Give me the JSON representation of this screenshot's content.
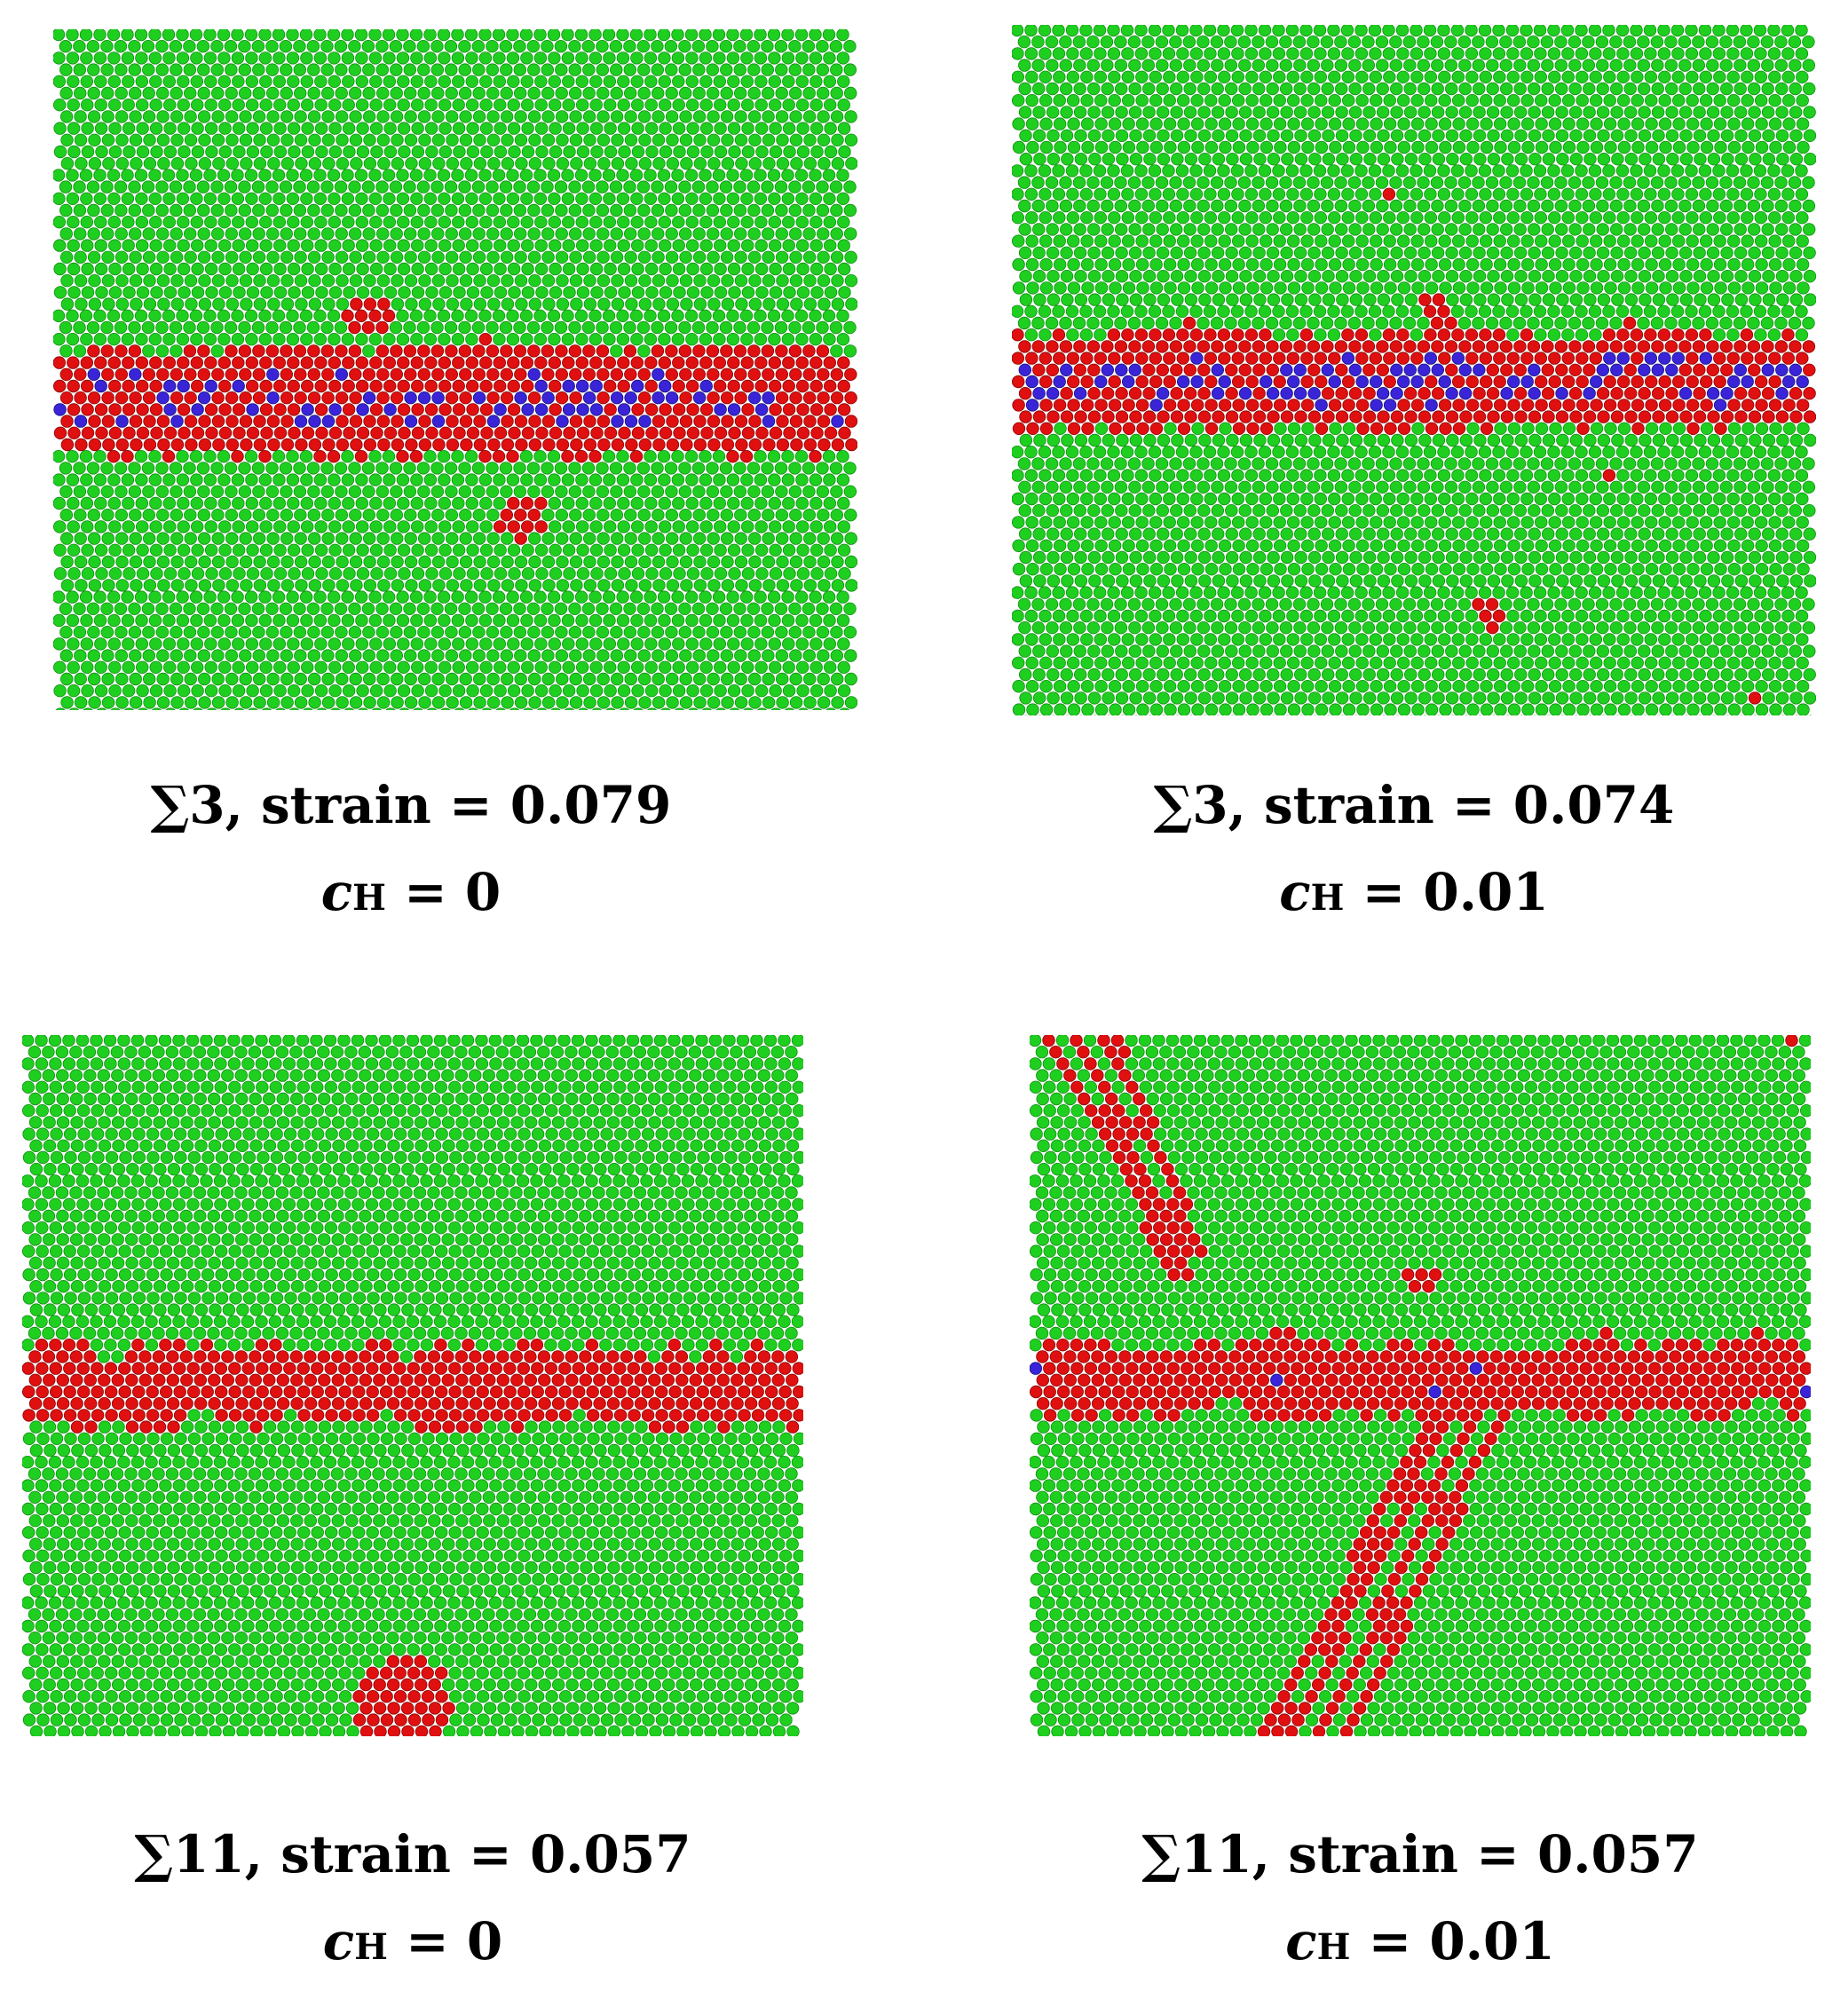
{
  "colors": {
    "fcc_atom": "#1fcf1f",
    "fcc_atom_edge": "#0f8f10",
    "hcp_or_other_atom": "#e01010",
    "hcp_or_other_atom_edge": "#8c0000",
    "bcc_atom": "#3a24d8",
    "bcc_atom_edge": "#1a0f80",
    "background": "#ffffff"
  },
  "panels": [
    {
      "boundary": "∑3",
      "strain_label": "strain = 0.079",
      "conc_symbol": "c",
      "conc_subscript": "H",
      "conc_value": "= 0",
      "gb_band": true,
      "gb_blue_fraction": 0.12,
      "slip_bands": false,
      "twin_bands": false,
      "extra_clusters": 2
    },
    {
      "boundary": "∑3",
      "strain_label": "strain = 0.074",
      "conc_symbol": "c",
      "conc_subscript": "H",
      "conc_value": "= 0.01",
      "gb_band": true,
      "gb_blue_fraction": 0.22,
      "slip_bands": false,
      "twin_bands": false,
      "extra_clusters": 5
    },
    {
      "boundary": "∑11",
      "strain_label": "strain = 0.057",
      "conc_symbol": "c",
      "conc_subscript": "H",
      "conc_value": "= 0",
      "gb_band": true,
      "gb_blue_fraction": 0,
      "slip_bands": false,
      "twin_bands": false,
      "extra_clusters": 1
    },
    {
      "boundary": "∑11",
      "strain_label": "strain = 0.057",
      "conc_symbol": "c",
      "conc_subscript": "H",
      "conc_value": "= 0.01",
      "gb_band": true,
      "gb_blue_fraction": 0.01,
      "slip_bands": true,
      "twin_bands": true,
      "extra_clusters": 2
    }
  ]
}
